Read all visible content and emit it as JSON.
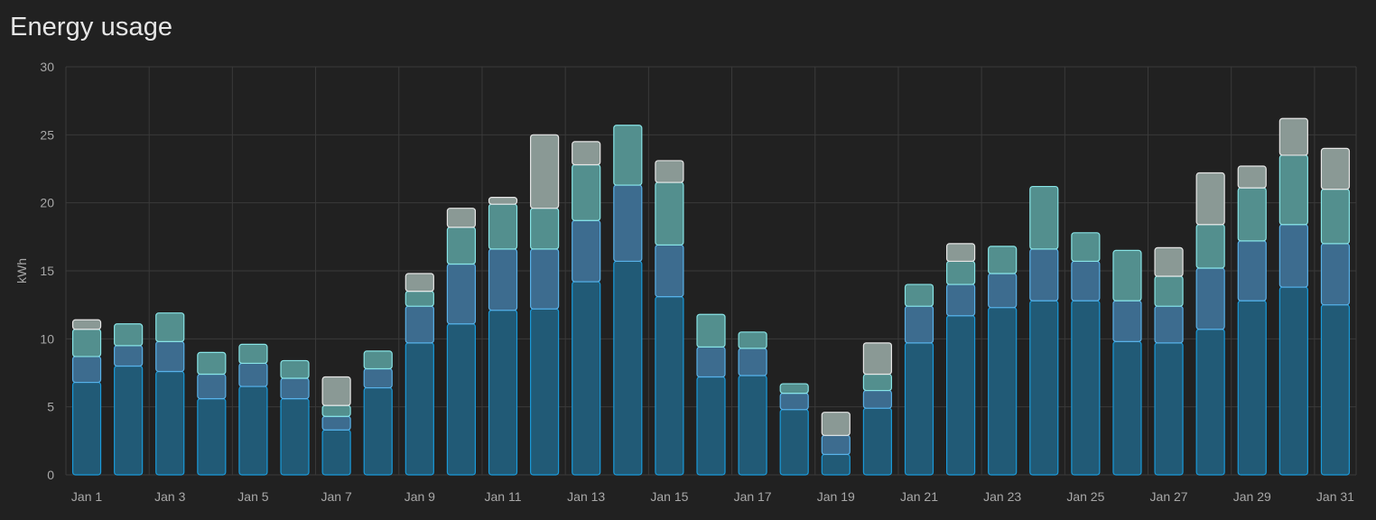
{
  "card": {
    "title": "Energy usage"
  },
  "colors": {
    "background": "#212121",
    "grid": "#3a3a3a",
    "axis_text": "#a8a8a8",
    "series": [
      {
        "fill": "#215a76",
        "stroke": "#1a9ad9"
      },
      {
        "fill": "#3d6c8f",
        "stroke": "#58b1e8"
      },
      {
        "fill": "#538f8e",
        "stroke": "#88e4e6"
      },
      {
        "fill": "#8a9995",
        "stroke": "#e6e6e6"
      }
    ]
  },
  "chart_data": {
    "type": "bar",
    "stacked": true,
    "title": "Energy usage",
    "ylabel": "kWh",
    "xlabel": "",
    "ylim": [
      0,
      30
    ],
    "yticks": [
      0,
      5,
      10,
      15,
      20,
      25,
      30
    ],
    "grid": true,
    "categories": [
      "Jan 1",
      "Jan 2",
      "Jan 3",
      "Jan 4",
      "Jan 5",
      "Jan 6",
      "Jan 7",
      "Jan 8",
      "Jan 9",
      "Jan 10",
      "Jan 11",
      "Jan 12",
      "Jan 13",
      "Jan 14",
      "Jan 15",
      "Jan 16",
      "Jan 17",
      "Jan 18",
      "Jan 19",
      "Jan 20",
      "Jan 21",
      "Jan 22",
      "Jan 23",
      "Jan 24",
      "Jan 25",
      "Jan 26",
      "Jan 27",
      "Jan 28",
      "Jan 29",
      "Jan 30",
      "Jan 31"
    ],
    "xtick_labels": [
      "Jan 1",
      "Jan 3",
      "Jan 5",
      "Jan 7",
      "Jan 9",
      "Jan 11",
      "Jan 13",
      "Jan 15",
      "Jan 17",
      "Jan 19",
      "Jan 21",
      "Jan 23",
      "Jan 25",
      "Jan 27",
      "Jan 29",
      "Jan 31"
    ],
    "series": [
      {
        "values": [
          6.8,
          8.0,
          7.6,
          5.6,
          6.5,
          5.6,
          3.3,
          6.4,
          9.7,
          11.1,
          12.1,
          12.2,
          14.2,
          15.7,
          13.1,
          7.2,
          7.3,
          4.8,
          1.5,
          4.9,
          9.7,
          11.7,
          12.3,
          12.8,
          12.8,
          9.8,
          9.7,
          10.7,
          12.8,
          13.8,
          12.5
        ]
      },
      {
        "values": [
          1.9,
          1.5,
          2.2,
          1.8,
          1.7,
          1.5,
          1.0,
          1.4,
          2.7,
          4.4,
          4.5,
          4.4,
          4.5,
          5.6,
          3.8,
          2.2,
          2.0,
          1.2,
          1.4,
          1.3,
          2.7,
          2.3,
          2.5,
          3.8,
          2.9,
          3.0,
          2.7,
          4.5,
          4.4,
          4.6,
          4.5
        ]
      },
      {
        "values": [
          2.0,
          1.6,
          2.1,
          1.6,
          1.4,
          1.3,
          0.8,
          1.3,
          1.1,
          2.7,
          3.3,
          3.0,
          4.1,
          4.4,
          4.6,
          2.4,
          1.2,
          0.7,
          0.0,
          1.2,
          1.6,
          1.7,
          2.0,
          4.6,
          2.1,
          3.7,
          2.2,
          3.2,
          3.9,
          5.1,
          4.0
        ]
      },
      {
        "values": [
          0.7,
          0.0,
          0.0,
          0.0,
          0.0,
          0.0,
          2.1,
          0.0,
          1.3,
          1.4,
          0.5,
          5.4,
          1.7,
          0.0,
          1.6,
          0.0,
          0.0,
          0.0,
          1.7,
          2.3,
          0.0,
          1.3,
          0.0,
          0.0,
          0.0,
          0.0,
          2.1,
          3.8,
          1.6,
          2.7,
          3.0
        ]
      }
    ]
  }
}
